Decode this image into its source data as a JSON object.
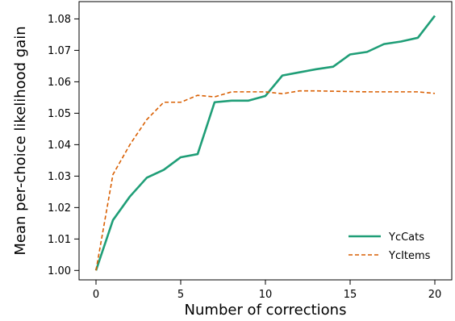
{
  "chart_data": {
    "type": "line",
    "title": "",
    "xlabel": "Number of corrections",
    "ylabel": "Mean per-choice likelihood gain",
    "xlim": [
      -1,
      21
    ],
    "ylim": [
      0.997,
      1.0855
    ],
    "xticks": [
      0,
      5,
      10,
      15,
      20
    ],
    "yticks": [
      1.0,
      1.01,
      1.02,
      1.03,
      1.04,
      1.05,
      1.06,
      1.07,
      1.08
    ],
    "ytick_labels": [
      "1.00",
      "1.01",
      "1.02",
      "1.03",
      "1.04",
      "1.05",
      "1.06",
      "1.07",
      "1.08"
    ],
    "grid": false,
    "legend_position": "bottom-right",
    "x": [
      0,
      1,
      2,
      3,
      4,
      5,
      6,
      7,
      8,
      9,
      10,
      11,
      12,
      13,
      14,
      15,
      16,
      17,
      18,
      19,
      20
    ],
    "series": [
      {
        "name": "YcCats",
        "color": "#1f9e77",
        "style": "solid",
        "values": [
          1.0,
          1.016,
          1.0235,
          1.0295,
          1.032,
          1.036,
          1.037,
          1.0535,
          1.054,
          1.054,
          1.0555,
          1.062,
          1.063,
          1.064,
          1.0648,
          1.0687,
          1.0695,
          1.072,
          1.0728,
          1.074,
          1.081
        ]
      },
      {
        "name": "YcItems",
        "color": "#d95f02",
        "style": "dashed",
        "values": [
          1.0,
          1.0305,
          1.04,
          1.048,
          1.0535,
          1.0535,
          1.0557,
          1.0552,
          1.0568,
          1.0568,
          1.0568,
          1.0562,
          1.0571,
          1.0571,
          1.057,
          1.0569,
          1.0568,
          1.0568,
          1.0568,
          1.0568,
          1.0563
        ]
      }
    ]
  }
}
